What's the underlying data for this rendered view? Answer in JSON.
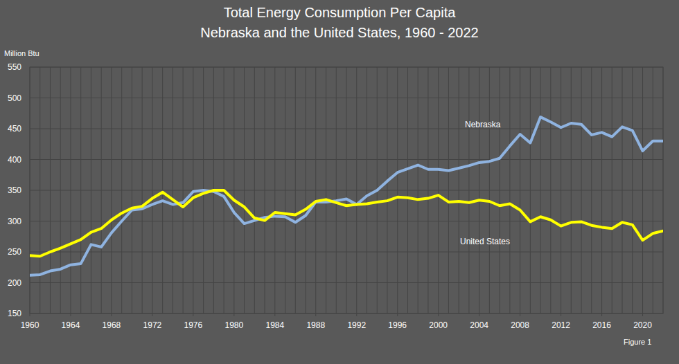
{
  "chart_data": {
    "type": "line",
    "title": "Total Energy Consumption Per Capita",
    "subtitle": "Nebraska and the United States, 1960 - 2022",
    "y_label": "Million Btu",
    "annotations": [
      "Figure 1"
    ],
    "x": [
      1960,
      1961,
      1962,
      1963,
      1964,
      1965,
      1966,
      1967,
      1968,
      1969,
      1970,
      1971,
      1972,
      1973,
      1974,
      1975,
      1976,
      1977,
      1978,
      1979,
      1980,
      1981,
      1982,
      1983,
      1984,
      1985,
      1986,
      1987,
      1988,
      1989,
      1990,
      1991,
      1992,
      1993,
      1994,
      1995,
      1996,
      1997,
      1998,
      1999,
      2000,
      2001,
      2002,
      2003,
      2004,
      2005,
      2006,
      2007,
      2008,
      2009,
      2010,
      2011,
      2012,
      2013,
      2014,
      2015,
      2016,
      2017,
      2018,
      2019,
      2020,
      2021,
      2022
    ],
    "series": [
      {
        "name": "Nebraska",
        "color": "#8fb3e0",
        "values": [
          212,
          213,
          219,
          222,
          229,
          231,
          262,
          258,
          281,
          300,
          318,
          320,
          327,
          333,
          327,
          330,
          348,
          350,
          348,
          340,
          314,
          296,
          301,
          306,
          308,
          307,
          298,
          309,
          331,
          331,
          333,
          336,
          327,
          341,
          350,
          365,
          379,
          385,
          391,
          384,
          384,
          382,
          386,
          390,
          395,
          397,
          402,
          422,
          441,
          427,
          469,
          461,
          452,
          459,
          457,
          440,
          444,
          437,
          453,
          447,
          414,
          430,
          430
        ]
      },
      {
        "name": "United States",
        "color": "#ffff00",
        "values": [
          244,
          243,
          250,
          256,
          263,
          270,
          282,
          288,
          302,
          313,
          321,
          324,
          337,
          347,
          335,
          323,
          338,
          345,
          350,
          350,
          334,
          323,
          305,
          301,
          314,
          312,
          310,
          319,
          332,
          335,
          330,
          325,
          327,
          328,
          331,
          333,
          339,
          338,
          335,
          337,
          342,
          331,
          332,
          330,
          334,
          332,
          325,
          328,
          318,
          299,
          307,
          302,
          292,
          298,
          299,
          293,
          290,
          288,
          298,
          294,
          269,
          280,
          284
        ]
      }
    ],
    "xlim": [
      1960,
      2022
    ],
    "xticks": [
      1960,
      1964,
      1968,
      1972,
      1976,
      1980,
      1984,
      1988,
      1992,
      1996,
      2000,
      2004,
      2008,
      2012,
      2016,
      2020
    ],
    "ylim": [
      150,
      550
    ],
    "yticks": [
      150,
      200,
      250,
      300,
      350,
      400,
      450,
      500,
      550
    ],
    "grid": true
  }
}
